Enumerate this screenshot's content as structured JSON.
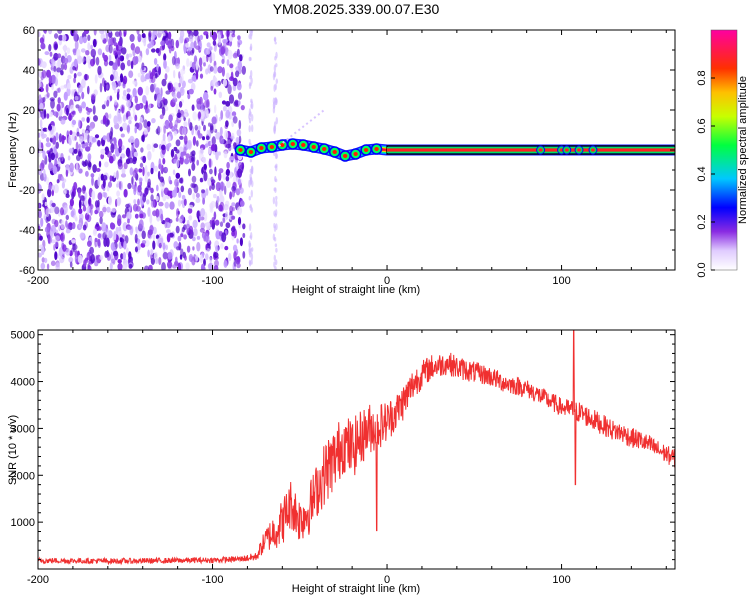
{
  "figure": {
    "title": "YM08.2025.339.00.07.E30"
  },
  "chart_data": [
    {
      "type": "heatmap",
      "name": "spectrogram",
      "xlabel": "Height of straight line (km)",
      "ylabel": "Frequency (Hz)",
      "xlim": [
        -200,
        165
      ],
      "ylim": [
        -60,
        60
      ],
      "xticks": [
        -200,
        -100,
        0,
        100
      ],
      "xtick_labels": [
        "-200",
        "-100",
        "0",
        "100"
      ],
      "yticks": [
        -60,
        -40,
        -20,
        0,
        20,
        40,
        60
      ],
      "ytick_labels": [
        "-60",
        "-40",
        "-20",
        "0",
        "20",
        "40",
        "60"
      ],
      "noise_region_x": [
        -200,
        -82
      ],
      "signal_start_x": -84,
      "signal_frequency": 0,
      "signal_trace": [
        {
          "x": -84,
          "f": 0
        },
        {
          "x": -78,
          "f": -1
        },
        {
          "x": -72,
          "f": 1
        },
        {
          "x": -66,
          "f": 1.5
        },
        {
          "x": -60,
          "f": 2.5
        },
        {
          "x": -54,
          "f": 3
        },
        {
          "x": -48,
          "f": 2.5
        },
        {
          "x": -42,
          "f": 1.5
        },
        {
          "x": -36,
          "f": 0.5
        },
        {
          "x": -30,
          "f": -1
        },
        {
          "x": -24,
          "f": -3
        },
        {
          "x": -18,
          "f": -2
        },
        {
          "x": -12,
          "f": 0
        },
        {
          "x": -6,
          "f": 0.5
        },
        {
          "x": 0,
          "f": 0
        },
        {
          "x": 165,
          "f": 0
        }
      ],
      "colorbar": {
        "label": "Normalized spectral amplitude",
        "range": [
          0,
          1
        ],
        "ticks": [
          0,
          0.2,
          0.4,
          0.6,
          0.8
        ],
        "tick_labels": [
          "0.0",
          "0.2",
          "0.4",
          "0.6",
          "0.8"
        ],
        "colors": [
          "#ffffff",
          "#d8c4ff",
          "#8a2be2",
          "#0000ff",
          "#00d0ff",
          "#00ff00",
          "#ffff00",
          "#ff8000",
          "#ff0000",
          "#ff0090"
        ]
      }
    },
    {
      "type": "line",
      "name": "snr",
      "xlabel": "Height of straight line (km)",
      "ylabel": "SNR (10 * v/v)",
      "xlim": [
        -200,
        165
      ],
      "ylim": [
        0,
        5100
      ],
      "xticks": [
        -200,
        -100,
        0,
        100
      ],
      "xtick_labels": [
        "-200",
        "-100",
        "0",
        "100"
      ],
      "yticks": [
        1000,
        2000,
        3000,
        4000,
        5000
      ],
      "ytick_labels": [
        "1000",
        "2000",
        "3000",
        "4000",
        "5000"
      ],
      "color": "#f03030",
      "x": [
        -200,
        -150,
        -100,
        -85,
        -75,
        -70,
        -65,
        -60,
        -55,
        -50,
        -45,
        -40,
        -35,
        -30,
        -25,
        -20,
        -15,
        -10,
        -5,
        0,
        5,
        10,
        15,
        20,
        25,
        30,
        35,
        40,
        45,
        50,
        55,
        60,
        65,
        70,
        75,
        80,
        85,
        90,
        95,
        100,
        105,
        110,
        115,
        120,
        125,
        130,
        135,
        140,
        145,
        150,
        155,
        160,
        165
      ],
      "values": [
        180,
        170,
        190,
        210,
        260,
        600,
        800,
        1000,
        1400,
        1050,
        1250,
        1700,
        2100,
        2350,
        2700,
        2550,
        2800,
        3000,
        3050,
        3150,
        3350,
        3600,
        3950,
        4150,
        4300,
        4350,
        4400,
        4300,
        4250,
        4200,
        4150,
        4100,
        4000,
        3950,
        3900,
        3850,
        3750,
        3650,
        3550,
        3450,
        3400,
        3350,
        3250,
        3150,
        3050,
        2950,
        2900,
        2800,
        2750,
        2650,
        2550,
        2450,
        2350
      ],
      "amplitude_of_fluctuation": [
        60,
        60,
        60,
        60,
        90,
        250,
        400,
        500,
        550,
        500,
        550,
        600,
        700,
        700,
        650,
        650,
        600,
        550,
        500,
        450,
        400,
        400,
        350,
        300,
        280,
        260,
        250,
        250,
        240,
        230,
        220,
        220,
        210,
        210,
        200,
        200,
        200,
        200,
        200,
        200,
        220,
        230,
        230,
        230,
        220,
        220,
        220,
        220,
        210,
        210,
        200,
        200,
        200
      ],
      "spikes": [
        {
          "x": -6,
          "y": 820
        },
        {
          "x": 107,
          "y": 5100
        },
        {
          "x": 108,
          "y": 1800
        }
      ]
    }
  ]
}
